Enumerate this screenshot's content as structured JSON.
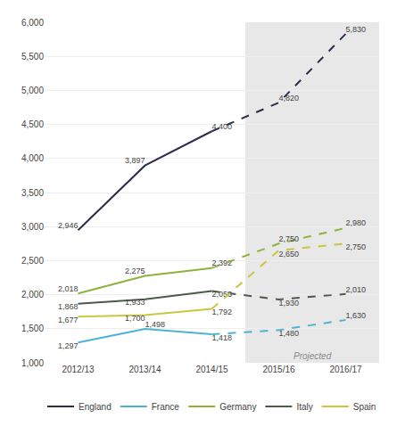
{
  "chart_data": {
    "type": "line",
    "categories": [
      "2012/13",
      "2013/14",
      "2014/15",
      "2015/16",
      "2016/17"
    ],
    "series": [
      {
        "name": "England",
        "color": "#2d2d4e",
        "values": [
          2946,
          3897,
          4400,
          4820,
          5830
        ],
        "value_labels": [
          "2,946",
          "3,897",
          "4,400",
          "4,820",
          "5,830"
        ]
      },
      {
        "name": "France",
        "color": "#4db3d4",
        "values": [
          1297,
          1498,
          1418,
          1480,
          1630
        ],
        "value_labels": [
          "1,297",
          "1,498",
          "1,418",
          "1,480",
          "1,630"
        ]
      },
      {
        "name": "Germany",
        "color": "#8db33a",
        "values": [
          2018,
          2275,
          2392,
          2750,
          2980
        ],
        "value_labels": [
          "2,018",
          "2,275",
          "2,392",
          "2,750",
          "2,980"
        ]
      },
      {
        "name": "Italy",
        "color": "#4d5a4a",
        "values": [
          1868,
          1933,
          2053,
          1930,
          2010
        ],
        "value_labels": [
          "1,868",
          "1,933",
          "2,053",
          "1,930",
          "2,010"
        ]
      },
      {
        "name": "Spain",
        "color": "#c8c840",
        "values": [
          1677,
          1700,
          1792,
          2650,
          2750
        ],
        "value_labels": [
          "1,677",
          "1,700",
          "1,792",
          "2,650",
          "2,750"
        ]
      }
    ],
    "ylim": [
      1000,
      6000
    ],
    "yticks": [
      {
        "value": 1000,
        "label": "1,000"
      },
      {
        "value": 1500,
        "label": "1,500"
      },
      {
        "value": 2000,
        "label": "2,000"
      },
      {
        "value": 2500,
        "label": "2,500"
      },
      {
        "value": 3000,
        "label": "3,000"
      },
      {
        "value": 3500,
        "label": "3,500"
      },
      {
        "value": 4000,
        "label": "4,000"
      },
      {
        "value": 4500,
        "label": "4,500"
      },
      {
        "value": 5000,
        "label": "5,000"
      },
      {
        "value": 5500,
        "label": "5,500"
      },
      {
        "value": 6000,
        "label": "6,000"
      }
    ],
    "grid": true,
    "legend": "bottom",
    "data_labels": true,
    "annotations": [
      {
        "text": "Projected",
        "x": "2015/16",
        "color": "#e8e8e8"
      }
    ]
  }
}
